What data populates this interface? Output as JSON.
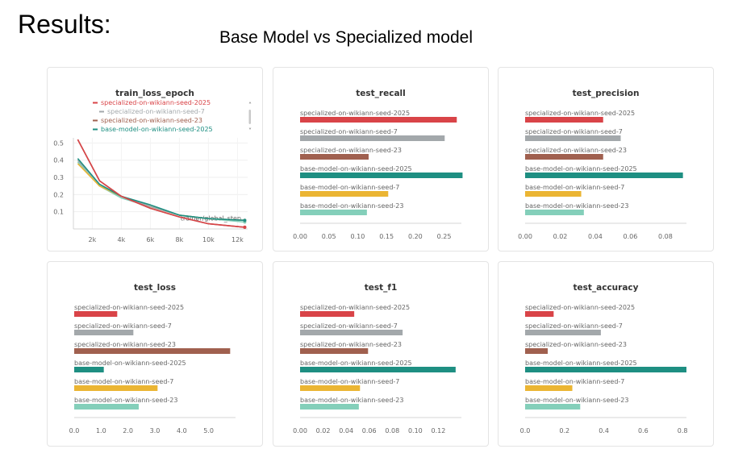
{
  "heading": "Results:",
  "subtitle": "Base Model vs Specialized model",
  "colors": {
    "specialized-on-wikiann-seed-2025": "#d94448",
    "specialized-on-wikiann-seed-7": "#a3a8ab",
    "specialized-on-wikiann-seed-23": "#a0604f",
    "base-model-on-wikiann-seed-2025": "#1e8f82",
    "base-model-on-wikiann-seed-7": "#ebb533",
    "base-model-on-wikiann-seed-23": "#84cfba"
  },
  "chart_data": [
    {
      "type": "line",
      "title": "train_loss_epoch",
      "xlabel": "trainer/global_step",
      "xlim": [
        700,
        12700
      ],
      "ylim": [
        0,
        0.53
      ],
      "xticks": [
        2000,
        4000,
        6000,
        8000,
        10000,
        12000
      ],
      "xtick_labels": [
        "2k",
        "4k",
        "6k",
        "8k",
        "10k",
        "12k"
      ],
      "yticks": [
        0.1,
        0.2,
        0.3,
        0.4,
        0.5
      ],
      "legend_position": "top",
      "legend": [
        "specialized-on-wikiann-seed-2025",
        "specialized-on-wikiann-seed-7",
        "specialized-on-wikiann-seed-23",
        "base-model-on-wikiann-seed-2025"
      ],
      "series": [
        {
          "name": "specialized-on-wikiann-seed-2025",
          "x": [
            1000,
            2500,
            4000,
            6000,
            8000,
            10000,
            12500
          ],
          "y": [
            0.52,
            0.28,
            0.19,
            0.12,
            0.07,
            0.03,
            0.01
          ]
        },
        {
          "name": "specialized-on-wikiann-seed-7",
          "x": [
            1000,
            2500,
            4000,
            6000,
            8000,
            10000,
            12500
          ],
          "y": [
            0.4,
            0.26,
            0.19,
            0.13,
            0.08,
            0.06,
            0.05
          ]
        },
        {
          "name": "specialized-on-wikiann-seed-23",
          "x": [
            1000,
            2500,
            4000,
            6000,
            8000,
            10000,
            12500
          ],
          "y": [
            0.52,
            0.28,
            0.19,
            0.12,
            0.07,
            0.03,
            0.01
          ]
        },
        {
          "name": "base-model-on-wikiann-seed-2025",
          "x": [
            1000,
            2500,
            4000,
            6000,
            8000,
            10000,
            12500
          ],
          "y": [
            0.41,
            0.26,
            0.19,
            0.14,
            0.08,
            0.06,
            0.05
          ]
        },
        {
          "name": "base-model-on-wikiann-seed-7",
          "x": [
            1000,
            2500,
            4000,
            6000,
            8000,
            10000,
            12500
          ],
          "y": [
            0.38,
            0.25,
            0.19,
            0.13,
            0.08,
            0.06,
            0.05
          ]
        },
        {
          "name": "base-model-on-wikiann-seed-23",
          "x": [
            1000,
            2500,
            4000,
            6000,
            8000,
            10000,
            12500
          ],
          "y": [
            0.39,
            0.25,
            0.18,
            0.13,
            0.08,
            0.06,
            0.04
          ]
        }
      ]
    },
    {
      "type": "bar",
      "title": "test_recall",
      "xlim": [
        0,
        0.28
      ],
      "xticks": [
        0,
        0.05,
        0.1,
        0.15,
        0.2,
        0.25
      ],
      "xtick_labels": [
        "0.00",
        "0.05",
        "0.10",
        "0.15",
        "0.20",
        "0.25"
      ],
      "categories": [
        "specialized-on-wikiann-seed-2025",
        "specialized-on-wikiann-seed-7",
        "specialized-on-wikiann-seed-23",
        "base-model-on-wikiann-seed-2025",
        "base-model-on-wikiann-seed-7",
        "base-model-on-wikiann-seed-23"
      ],
      "values": [
        0.272,
        0.251,
        0.119,
        0.282,
        0.153,
        0.116
      ]
    },
    {
      "type": "bar",
      "title": "test_precision",
      "xlim": [
        0,
        0.092
      ],
      "xticks": [
        0,
        0.02,
        0.04,
        0.06,
        0.08
      ],
      "xtick_labels": [
        "0.00",
        "0.02",
        "0.04",
        "0.06",
        "0.08"
      ],
      "categories": [
        "specialized-on-wikiann-seed-2025",
        "specialized-on-wikiann-seed-7",
        "specialized-on-wikiann-seed-23",
        "base-model-on-wikiann-seed-2025",
        "base-model-on-wikiann-seed-7",
        "base-model-on-wikiann-seed-23"
      ],
      "values": [
        0.0445,
        0.0545,
        0.0445,
        0.09,
        0.032,
        0.0335
      ]
    },
    {
      "type": "bar",
      "title": "test_loss",
      "xlim": [
        0,
        6.0
      ],
      "xticks": [
        0,
        1,
        2,
        3,
        4,
        5
      ],
      "xtick_labels": [
        "0.0",
        "1.0",
        "2.0",
        "3.0",
        "4.0",
        "5.0"
      ],
      "categories": [
        "specialized-on-wikiann-seed-2025",
        "specialized-on-wikiann-seed-7",
        "specialized-on-wikiann-seed-23",
        "base-model-on-wikiann-seed-2025",
        "base-model-on-wikiann-seed-7",
        "base-model-on-wikiann-seed-23"
      ],
      "values": [
        1.6,
        2.2,
        5.8,
        1.1,
        3.1,
        2.4
      ]
    },
    {
      "type": "bar",
      "title": "test_f1",
      "xlim": [
        0,
        0.14
      ],
      "xticks": [
        0,
        0.02,
        0.04,
        0.06,
        0.08,
        0.1,
        0.12
      ],
      "xtick_labels": [
        "0.00",
        "0.02",
        "0.04",
        "0.06",
        "0.08",
        "0.10",
        "0.12"
      ],
      "categories": [
        "specialized-on-wikiann-seed-2025",
        "specialized-on-wikiann-seed-7",
        "specialized-on-wikiann-seed-23",
        "base-model-on-wikiann-seed-2025",
        "base-model-on-wikiann-seed-7",
        "base-model-on-wikiann-seed-23"
      ],
      "values": [
        0.047,
        0.089,
        0.059,
        0.135,
        0.052,
        0.051
      ]
    },
    {
      "type": "bar",
      "title": "test_accuracy",
      "xlim": [
        0,
        0.82
      ],
      "xticks": [
        0,
        0.2,
        0.4,
        0.6,
        0.8
      ],
      "xtick_labels": [
        "0.0",
        "0.2",
        "0.4",
        "0.6",
        "0.8"
      ],
      "categories": [
        "specialized-on-wikiann-seed-2025",
        "specialized-on-wikiann-seed-7",
        "specialized-on-wikiann-seed-23",
        "base-model-on-wikiann-seed-2025",
        "base-model-on-wikiann-seed-7",
        "base-model-on-wikiann-seed-23"
      ],
      "values": [
        0.145,
        0.385,
        0.115,
        0.82,
        0.24,
        0.28
      ]
    }
  ]
}
